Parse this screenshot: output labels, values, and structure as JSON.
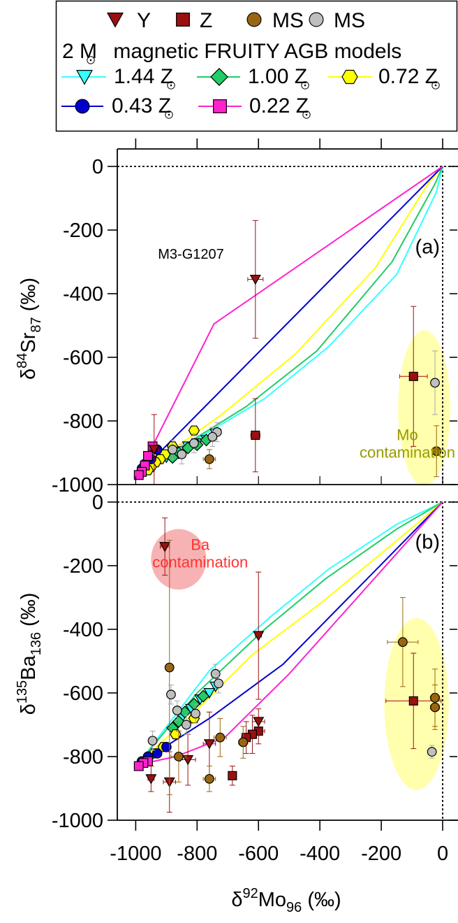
{
  "legend": {
    "row1": [
      {
        "label": "Y",
        "marker": "triangle-down",
        "fill": "#9b1010"
      },
      {
        "label": "Z",
        "marker": "square",
        "fill": "#9b1010"
      },
      {
        "label": "MS",
        "marker": "circle",
        "fill": "#9a6512"
      },
      {
        "label": "MS",
        "marker": "circle",
        "fill": "#bfbfbf"
      }
    ],
    "models_title": "2 M magnetic FRUITY AGB models",
    "models": [
      {
        "label": "1.44 Z",
        "marker": "triangle-down",
        "color": "#33ffff"
      },
      {
        "label": "1.00 Z",
        "marker": "diamond",
        "color": "#22cc66"
      },
      {
        "label": "0.72 Z",
        "marker": "hexagon",
        "color": "#ffff00"
      },
      {
        "label": "0.43 Z",
        "marker": "circle",
        "color": "#0000cc"
      },
      {
        "label": "0.22 Z",
        "marker": "square",
        "color": "#ff22cc"
      }
    ]
  },
  "colors": {
    "Y": "#9b1010",
    "Z": "#9b1010",
    "MS_brown": "#9a6512",
    "MS_gray": "#bfbfbf",
    "mo_ellipse": "#ffff99",
    "ba_ellipse": "#f5a0a0"
  },
  "chart_data": [
    {
      "type": "scatter",
      "panel_label": "(a)",
      "ylabel": {
        "base": "δ",
        "sup": "84",
        "main": "Sr",
        "sub": "87",
        "unit": " (‰)"
      },
      "xlim": [
        -1060,
        50
      ],
      "ylim": [
        -1000,
        50
      ],
      "yticks": [
        0,
        -200,
        -400,
        -600,
        -800,
        -1000
      ],
      "annotations": [
        {
          "text": "M3-G1207",
          "x": -820,
          "y": -290,
          "color": "#000000"
        },
        {
          "text": "Mo",
          "x": -115,
          "y": -860,
          "color": "#999900"
        },
        {
          "text": "contamination",
          "x": -115,
          "y": -915,
          "color": "#999900"
        }
      ],
      "ellipses": [
        {
          "cx": -60,
          "cy": -760,
          "rx": 85,
          "ry": 245,
          "color": "mo"
        }
      ],
      "model_lines": [
        {
          "name": "1.44 Z",
          "points": [
            [
              0,
              0
            ],
            [
              -20,
              -80
            ],
            [
              -150,
              -340
            ],
            [
              -370,
              -565
            ],
            [
              -580,
              -730
            ],
            [
              -990,
              -965
            ]
          ]
        },
        {
          "name": "1.00 Z",
          "points": [
            [
              0,
              0
            ],
            [
              -25,
              -55
            ],
            [
              -165,
              -300
            ],
            [
              -410,
              -580
            ],
            [
              -640,
              -755
            ],
            [
              -990,
              -965
            ]
          ]
        },
        {
          "name": "0.72 Z",
          "points": [
            [
              0,
              0
            ],
            [
              -45,
              -50
            ],
            [
              -220,
              -320
            ],
            [
              -480,
              -590
            ],
            [
              -720,
              -780
            ],
            [
              -990,
              -965
            ]
          ]
        },
        {
          "name": "0.43 Z",
          "points": [
            [
              0,
              0
            ],
            [
              -990,
              -965
            ]
          ]
        },
        {
          "name": "0.22 Z",
          "points": [
            [
              0,
              0
            ],
            [
              -745,
              -495
            ],
            [
              -990,
              -965
            ]
          ]
        }
      ],
      "model_markers": [
        {
          "name": "1.44 Z",
          "points": [
            [
              -740,
              -840
            ],
            [
              -770,
              -860
            ],
            [
              -800,
              -870
            ],
            [
              -830,
              -880
            ],
            [
              -860,
              -895
            ],
            [
              -900,
              -915
            ]
          ]
        },
        {
          "name": "1.00 Z",
          "points": [
            [
              -770,
              -860
            ],
            [
              -800,
              -875
            ],
            [
              -830,
              -885
            ],
            [
              -860,
              -900
            ],
            [
              -880,
              -915
            ]
          ]
        },
        {
          "name": "0.72 Z",
          "points": [
            [
              -810,
              -830
            ],
            [
              -880,
              -880
            ],
            [
              -905,
              -905
            ],
            [
              -920,
              -920
            ],
            [
              -935,
              -930
            ],
            [
              -950,
              -945
            ],
            [
              -960,
              -955
            ]
          ]
        },
        {
          "name": "0.43 Z",
          "points": [
            [
              -930,
              -890
            ],
            [
              -950,
              -920
            ],
            [
              -970,
              -935
            ],
            [
              -980,
              -950
            ],
            [
              -985,
              -965
            ]
          ]
        },
        {
          "name": "0.22 Z",
          "points": [
            [
              -945,
              -880
            ],
            [
              -960,
              -910
            ],
            [
              -970,
              -940
            ],
            [
              -980,
              -960
            ],
            [
              -990,
              -970
            ]
          ]
        }
      ],
      "grains": [
        {
          "type": "Y",
          "x": -610,
          "y": -355,
          "xerr": 25,
          "yerr": 185
        },
        {
          "type": "Y",
          "x": -940,
          "y": -890,
          "xerr": 15,
          "yerr": 110
        },
        {
          "type": "Z",
          "x": -95,
          "y": -660,
          "xerr": 45,
          "yerr": 220
        },
        {
          "type": "Z",
          "x": -610,
          "y": -845,
          "xerr": 15,
          "yerr": 115
        },
        {
          "type": "MS_gray",
          "x": -25,
          "y": -680,
          "xerr": 10,
          "yerr": 100
        },
        {
          "type": "MS_brown",
          "x": -20,
          "y": -895,
          "xerr": 10,
          "yerr": 80
        },
        {
          "type": "MS_brown",
          "x": -760,
          "y": -920,
          "xerr": 20,
          "yerr": 30
        },
        {
          "type": "MS_gray",
          "x": -735,
          "y": -835,
          "xerr": 10,
          "yerr": 30
        },
        {
          "type": "MS_gray",
          "x": -750,
          "y": -850,
          "xerr": 10,
          "yerr": 30
        },
        {
          "type": "MS_gray",
          "x": -810,
          "y": -870,
          "xerr": 10,
          "yerr": 30
        },
        {
          "type": "MS_gray",
          "x": -850,
          "y": -905,
          "xerr": 10,
          "yerr": 30
        },
        {
          "type": "MS_gray",
          "x": -880,
          "y": -890,
          "xerr": 10,
          "yerr": 30
        }
      ]
    },
    {
      "type": "scatter",
      "panel_label": "(b)",
      "xlabel": {
        "base": "δ",
        "sup": "92",
        "main": "Mo",
        "sub": "96",
        "unit": " (‰)"
      },
      "ylabel": {
        "base": "δ",
        "sup": "135",
        "main": "Ba",
        "sub": "136",
        "unit": " (‰)"
      },
      "xlim": [
        -1060,
        50
      ],
      "ylim": [
        -1000,
        50
      ],
      "xticks": [
        -1000,
        -800,
        -600,
        -400,
        -200,
        0
      ],
      "yticks": [
        0,
        -200,
        -400,
        -600,
        -800,
        -1000
      ],
      "annotations": [
        {
          "text": "Ba",
          "x": -790,
          "y": -150,
          "color": "#ff3333"
        },
        {
          "text": "contamination",
          "x": -790,
          "y": -205,
          "color": "#ff3333"
        }
      ],
      "ellipses": [
        {
          "cx": -860,
          "cy": -180,
          "rx": 90,
          "ry": 95,
          "color": "ba"
        },
        {
          "cx": -85,
          "cy": -635,
          "rx": 105,
          "ry": 270,
          "color": "mo"
        }
      ],
      "model_lines": [
        {
          "name": "1.44 Z",
          "points": [
            [
              0,
              0
            ],
            [
              -150,
              -70
            ],
            [
              -370,
              -210
            ],
            [
              -560,
              -360
            ],
            [
              -760,
              -530
            ],
            [
              -990,
              -820
            ]
          ]
        },
        {
          "name": "1.00 Z",
          "points": [
            [
              0,
              0
            ],
            [
              -150,
              -85
            ],
            [
              -380,
              -240
            ],
            [
              -580,
              -400
            ],
            [
              -800,
              -600
            ],
            [
              -990,
              -820
            ]
          ]
        },
        {
          "name": "0.72 Z",
          "points": [
            [
              0,
              0
            ],
            [
              -160,
              -130
            ],
            [
              -400,
              -320
            ],
            [
              -620,
              -480
            ],
            [
              -830,
              -680
            ],
            [
              -990,
              -820
            ]
          ]
        },
        {
          "name": "0.43 Z",
          "points": [
            [
              0,
              0
            ],
            [
              -520,
              -510
            ],
            [
              -760,
              -680
            ],
            [
              -930,
              -785
            ],
            [
              -990,
              -820
            ]
          ]
        },
        {
          "name": "0.22 Z",
          "points": [
            [
              0,
              0
            ],
            [
              -500,
              -540
            ],
            [
              -710,
              -740
            ],
            [
              -870,
              -800
            ],
            [
              -990,
              -825
            ]
          ]
        }
      ],
      "model_markers": [
        {
          "name": "1.44 Z",
          "points": [
            [
              -740,
              -580
            ],
            [
              -760,
              -600
            ],
            [
              -790,
              -620
            ],
            [
              -820,
              -650
            ],
            [
              -850,
              -680
            ]
          ]
        },
        {
          "name": "1.00 Z",
          "points": [
            [
              -780,
              -610
            ],
            [
              -810,
              -635
            ],
            [
              -840,
              -660
            ],
            [
              -860,
              -690
            ],
            [
              -880,
              -710
            ]
          ]
        },
        {
          "name": "0.72 Z",
          "points": [
            [
              -810,
              -680
            ],
            [
              -870,
              -730
            ],
            [
              -910,
              -770
            ],
            [
              -940,
              -790
            ],
            [
              -960,
              -805
            ]
          ]
        },
        {
          "name": "0.43 Z",
          "points": [
            [
              -900,
              -770
            ],
            [
              -930,
              -790
            ],
            [
              -960,
              -800
            ],
            [
              -980,
              -815
            ]
          ]
        },
        {
          "name": "0.22 Z",
          "points": [
            [
              -960,
              -815
            ],
            [
              -975,
              -820
            ],
            [
              -990,
              -830
            ]
          ]
        }
      ],
      "grains": [
        {
          "type": "Y",
          "x": -905,
          "y": -140,
          "xerr": 15,
          "yerr": 90
        },
        {
          "type": "Y",
          "x": -600,
          "y": -420,
          "xerr": 10,
          "yerr": 200
        },
        {
          "type": "Y",
          "x": -600,
          "y": -690,
          "xerr": 20,
          "yerr": 40
        },
        {
          "type": "Y",
          "x": -760,
          "y": -760,
          "xerr": 20,
          "yerr": 100
        },
        {
          "type": "Y",
          "x": -830,
          "y": -810,
          "xerr": 25,
          "yerr": 80
        },
        {
          "type": "Y",
          "x": -890,
          "y": -880,
          "xerr": 20,
          "yerr": 95
        },
        {
          "type": "Y",
          "x": -950,
          "y": -870,
          "xerr": 10,
          "yerr": 40
        },
        {
          "type": "Z",
          "x": -95,
          "y": -625,
          "xerr": 90,
          "yerr": 150
        },
        {
          "type": "Z",
          "x": -600,
          "y": -720,
          "xerr": 20,
          "yerr": 40
        },
        {
          "type": "Z",
          "x": -620,
          "y": -730,
          "xerr": 20,
          "yerr": 60
        },
        {
          "type": "Z",
          "x": -640,
          "y": -740,
          "xerr": 15,
          "yerr": 50
        },
        {
          "type": "Z",
          "x": -685,
          "y": -860,
          "xerr": 10,
          "yerr": 30
        },
        {
          "type": "MS_brown",
          "x": -890,
          "y": -520,
          "xerr": 10,
          "yerr": 400
        },
        {
          "type": "MS_brown",
          "x": -130,
          "y": -440,
          "xerr": 50,
          "yerr": 140
        },
        {
          "type": "MS_brown",
          "x": -25,
          "y": -615,
          "xerr": 15,
          "yerr": 90
        },
        {
          "type": "MS_brown",
          "x": -25,
          "y": -645,
          "xerr": 15,
          "yerr": 70
        },
        {
          "type": "MS_brown",
          "x": -650,
          "y": -755,
          "xerr": 15,
          "yerr": 50
        },
        {
          "type": "MS_brown",
          "x": -725,
          "y": -740,
          "xerr": 20,
          "yerr": 60
        },
        {
          "type": "MS_brown",
          "x": -760,
          "y": -870,
          "xerr": 20,
          "yerr": 40
        },
        {
          "type": "MS_brown",
          "x": -860,
          "y": -800,
          "xerr": 25,
          "yerr": 80
        },
        {
          "type": "MS_gray",
          "x": -35,
          "y": -785,
          "xerr": 10,
          "yerr": 20
        },
        {
          "type": "MS_gray",
          "x": -740,
          "y": -540,
          "xerr": 10,
          "yerr": 30
        },
        {
          "type": "MS_gray",
          "x": -730,
          "y": -570,
          "xerr": 10,
          "yerr": 30
        },
        {
          "type": "MS_gray",
          "x": -885,
          "y": -605,
          "xerr": 10,
          "yerr": 30
        },
        {
          "type": "MS_gray",
          "x": -865,
          "y": -655,
          "xerr": 10,
          "yerr": 30
        },
        {
          "type": "MS_gray",
          "x": -805,
          "y": -665,
          "xerr": 10,
          "yerr": 30
        },
        {
          "type": "MS_gray",
          "x": -835,
          "y": -700,
          "xerr": 10,
          "yerr": 30
        },
        {
          "type": "MS_gray",
          "x": -945,
          "y": -750,
          "xerr": 10,
          "yerr": 30
        }
      ]
    }
  ]
}
